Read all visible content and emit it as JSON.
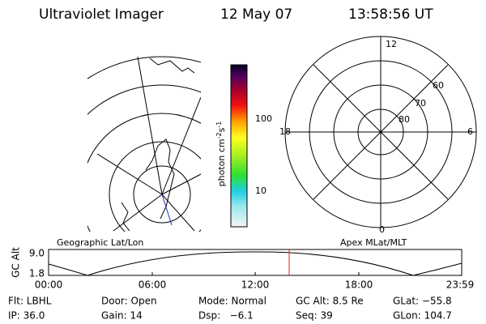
{
  "header": {
    "title": "Ultraviolet Imager",
    "date": "12 May 07",
    "time": "13:58:56 UT"
  },
  "colorbar": {
    "label": "photon cm",
    "exp1": "-2",
    "unit2": "s",
    "exp2": "-1",
    "ticks": [
      "100",
      "10"
    ]
  },
  "polar": {
    "labels": [
      "12",
      "0",
      "18",
      "6",
      "60",
      "70",
      "80"
    ]
  },
  "plot": {
    "title_left": "Geographic Lat/Lon",
    "title_right": "Apex MLat/MLT",
    "ylabel": "GC Alt",
    "yticks": [
      "9.0",
      "1.8"
    ],
    "xticks": [
      "00:00",
      "06:00",
      "12:00",
      "18:00",
      "23:59"
    ]
  },
  "footer": {
    "rows": [
      [
        "Flt: LBHL",
        "Door: Open",
        "Mode: Normal",
        "GC Alt: 8.5 Re",
        "GLat: −55.8"
      ],
      [
        "IP: 36.0",
        "Gain: 14",
        "Dsp:   −6.1",
        "Seq: 39",
        "GLon: 104.7"
      ]
    ]
  }
}
